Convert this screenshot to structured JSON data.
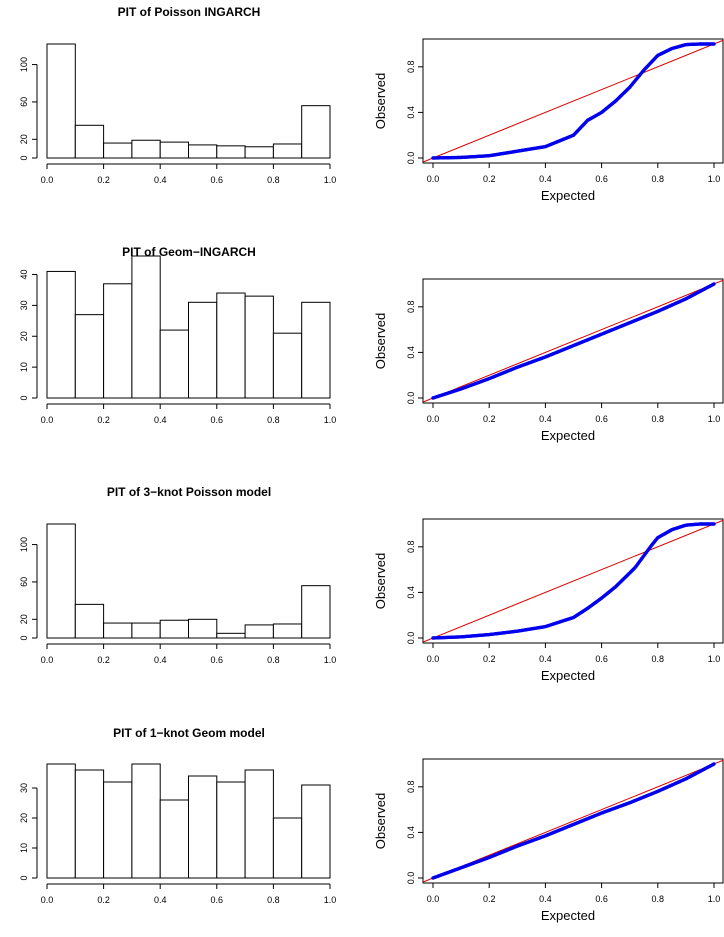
{
  "colors": {
    "bar_fill": "#ffffff",
    "bar_stroke": "#000000",
    "points": "#0000ee",
    "reference_line": "#dd0000",
    "background": "#ffffff"
  },
  "chart_data": [
    {
      "type": "bar",
      "title": "PIT of Poisson INGARCH",
      "bin_edges": [
        0.0,
        0.1,
        0.2,
        0.3,
        0.4,
        0.5,
        0.6,
        0.7,
        0.8,
        0.9,
        1.0
      ],
      "values": [
        122,
        35,
        16,
        19,
        17,
        14,
        13,
        12,
        15,
        56
      ],
      "xlim": [
        0,
        1
      ],
      "ylim": [
        0,
        122
      ],
      "xticks": [
        0.0,
        0.2,
        0.4,
        0.6,
        0.8,
        1.0
      ],
      "xtick_labels": [
        "0.0",
        "0.2",
        "0.4",
        "0.6",
        "0.8",
        "1.0"
      ],
      "yticks": [
        0,
        20,
        60,
        100
      ],
      "ytick_labels": [
        "0",
        "20",
        "60",
        "100"
      ],
      "xlabel": "",
      "ylabel": "",
      "grid": false
    },
    {
      "type": "scatter",
      "title": "",
      "xlabel": "Expected",
      "ylabel": "Observed",
      "xlim": [
        0,
        1
      ],
      "ylim": [
        0,
        1
      ],
      "xticks": [
        0.0,
        0.2,
        0.4,
        0.6,
        0.8,
        1.0
      ],
      "xtick_labels": [
        "0.0",
        "0.2",
        "0.4",
        "0.6",
        "0.8",
        "1.0"
      ],
      "yticks": [
        0.0,
        0.4,
        0.8
      ],
      "ytick_labels": [
        "0.0",
        "0.4",
        "0.8"
      ],
      "reference_line": {
        "x": [
          0,
          1
        ],
        "y": [
          0,
          1
        ]
      },
      "curve": {
        "x": [
          0.0,
          0.1,
          0.2,
          0.3,
          0.4,
          0.45,
          0.5,
          0.55,
          0.6,
          0.65,
          0.7,
          0.75,
          0.8,
          0.85,
          0.9,
          0.95,
          1.0
        ],
        "y": [
          0.0,
          0.005,
          0.02,
          0.06,
          0.1,
          0.15,
          0.2,
          0.33,
          0.4,
          0.5,
          0.62,
          0.77,
          0.9,
          0.96,
          0.995,
          1.0,
          1.0
        ]
      },
      "grid": false
    },
    {
      "type": "bar",
      "title": "PIT of Geom−INGARCH",
      "bin_edges": [
        0.0,
        0.1,
        0.2,
        0.3,
        0.4,
        0.5,
        0.6,
        0.7,
        0.8,
        0.9,
        1.0
      ],
      "values": [
        41,
        27,
        37,
        46,
        22,
        31,
        34,
        33,
        21,
        31
      ],
      "xlim": [
        0,
        1
      ],
      "ylim": [
        0,
        46
      ],
      "xticks": [
        0.0,
        0.2,
        0.4,
        0.6,
        0.8,
        1.0
      ],
      "xtick_labels": [
        "0.0",
        "0.2",
        "0.4",
        "0.6",
        "0.8",
        "1.0"
      ],
      "yticks": [
        0,
        10,
        20,
        30,
        40
      ],
      "ytick_labels": [
        "0",
        "10",
        "20",
        "30",
        "40"
      ],
      "xlabel": "",
      "ylabel": "",
      "grid": false
    },
    {
      "type": "scatter",
      "title": "",
      "xlabel": "Expected",
      "ylabel": "Observed",
      "xlim": [
        0,
        1
      ],
      "ylim": [
        0,
        1
      ],
      "xticks": [
        0.0,
        0.2,
        0.4,
        0.6,
        0.8,
        1.0
      ],
      "xtick_labels": [
        "0.0",
        "0.2",
        "0.4",
        "0.6",
        "0.8",
        "1.0"
      ],
      "yticks": [
        0.0,
        0.4,
        0.8
      ],
      "ytick_labels": [
        "0.0",
        "0.4",
        "0.8"
      ],
      "reference_line": {
        "x": [
          0,
          1
        ],
        "y": [
          0,
          1
        ]
      },
      "curve": {
        "x": [
          0.0,
          0.1,
          0.2,
          0.3,
          0.4,
          0.5,
          0.6,
          0.7,
          0.8,
          0.9,
          1.0
        ],
        "y": [
          0.0,
          0.08,
          0.17,
          0.27,
          0.36,
          0.46,
          0.56,
          0.66,
          0.76,
          0.87,
          1.0
        ]
      },
      "grid": false
    },
    {
      "type": "bar",
      "title": "PIT of 3−knot Poisson model",
      "bin_edges": [
        0.0,
        0.1,
        0.2,
        0.3,
        0.4,
        0.5,
        0.6,
        0.7,
        0.8,
        0.9,
        1.0
      ],
      "values": [
        122,
        36,
        16,
        16,
        19,
        20,
        5,
        14,
        15,
        56
      ],
      "xlim": [
        0,
        1
      ],
      "ylim": [
        0,
        122
      ],
      "xticks": [
        0.0,
        0.2,
        0.4,
        0.6,
        0.8,
        1.0
      ],
      "xtick_labels": [
        "0.0",
        "0.2",
        "0.4",
        "0.6",
        "0.8",
        "1.0"
      ],
      "yticks": [
        0,
        20,
        60,
        100
      ],
      "ytick_labels": [
        "0",
        "20",
        "60",
        "100"
      ],
      "xlabel": "",
      "ylabel": "",
      "grid": false
    },
    {
      "type": "scatter",
      "title": "",
      "xlabel": "Expected",
      "ylabel": "Observed",
      "xlim": [
        0,
        1
      ],
      "ylim": [
        0,
        1
      ],
      "xticks": [
        0.0,
        0.2,
        0.4,
        0.6,
        0.8,
        1.0
      ],
      "xtick_labels": [
        "0.0",
        "0.2",
        "0.4",
        "0.6",
        "0.8",
        "1.0"
      ],
      "yticks": [
        0.0,
        0.4,
        0.8
      ],
      "ytick_labels": [
        "0.0",
        "0.4",
        "0.8"
      ],
      "reference_line": {
        "x": [
          0,
          1
        ],
        "y": [
          0,
          1
        ]
      },
      "curve": {
        "x": [
          0.0,
          0.1,
          0.2,
          0.3,
          0.4,
          0.5,
          0.55,
          0.6,
          0.65,
          0.7,
          0.72,
          0.75,
          0.78,
          0.8,
          0.85,
          0.9,
          0.95,
          1.0
        ],
        "y": [
          0.0,
          0.01,
          0.03,
          0.06,
          0.1,
          0.18,
          0.26,
          0.35,
          0.45,
          0.57,
          0.62,
          0.72,
          0.82,
          0.88,
          0.95,
          0.99,
          1.0,
          1.0
        ]
      },
      "grid": false
    },
    {
      "type": "bar",
      "title": "PIT of 1−knot Geom model",
      "bin_edges": [
        0.0,
        0.1,
        0.2,
        0.3,
        0.4,
        0.5,
        0.6,
        0.7,
        0.8,
        0.9,
        1.0
      ],
      "values": [
        38,
        36,
        32,
        38,
        26,
        34,
        32,
        36,
        20,
        31
      ],
      "xlim": [
        0,
        1
      ],
      "ylim": [
        0,
        38
      ],
      "xticks": [
        0.0,
        0.2,
        0.4,
        0.6,
        0.8,
        1.0
      ],
      "xtick_labels": [
        "0.0",
        "0.2",
        "0.4",
        "0.6",
        "0.8",
        "1.0"
      ],
      "yticks": [
        0,
        10,
        20,
        30
      ],
      "ytick_labels": [
        "0",
        "10",
        "20",
        "30"
      ],
      "xlabel": "",
      "ylabel": "",
      "grid": false
    },
    {
      "type": "scatter",
      "title": "",
      "xlabel": "Expected",
      "ylabel": "Observed",
      "xlim": [
        0,
        1
      ],
      "ylim": [
        0,
        1
      ],
      "xticks": [
        0.0,
        0.2,
        0.4,
        0.6,
        0.8,
        1.0
      ],
      "xtick_labels": [
        "0.0",
        "0.2",
        "0.4",
        "0.6",
        "0.8",
        "1.0"
      ],
      "yticks": [
        0.0,
        0.4,
        0.8
      ],
      "ytick_labels": [
        "0.0",
        "0.4",
        "0.8"
      ],
      "reference_line": {
        "x": [
          0,
          1
        ],
        "y": [
          0,
          1
        ]
      },
      "curve": {
        "x": [
          0.0,
          0.1,
          0.2,
          0.3,
          0.4,
          0.5,
          0.6,
          0.7,
          0.8,
          0.9,
          1.0
        ],
        "y": [
          0.0,
          0.09,
          0.18,
          0.28,
          0.37,
          0.47,
          0.57,
          0.66,
          0.76,
          0.87,
          1.0
        ]
      },
      "grid": false
    }
  ]
}
